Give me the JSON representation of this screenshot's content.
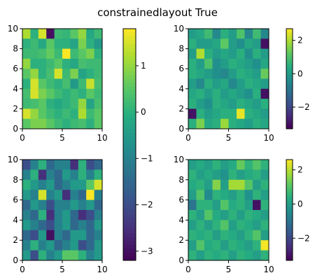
{
  "figure": {
    "title": "constrainedlayout True"
  },
  "chart_data": [
    {
      "type": "heatmap",
      "colormap": "viridis",
      "extent": {
        "x": [
          0,
          10
        ],
        "y": [
          0,
          10
        ]
      },
      "xticks": [
        0,
        5,
        10
      ],
      "yticks": [
        0,
        2,
        4,
        6,
        8,
        10
      ],
      "grid": false,
      "colorbar": {
        "ticks": [
          -3,
          -2,
          -1,
          0,
          1
        ],
        "range": [
          -3.2,
          1.8
        ],
        "orientation": "vertical",
        "placement": "right"
      },
      "values": [
        [
          1.2,
          0.0,
          1.5,
          -3.0,
          0.2,
          0.1,
          0.5,
          1.0,
          -0.2,
          0.2
        ],
        [
          0.0,
          0.2,
          -0.2,
          0.5,
          0.0,
          0.0,
          -0.3,
          0.8,
          0.0,
          -0.5
        ],
        [
          0.2,
          0.2,
          0.3,
          0.6,
          0.2,
          1.8,
          0.2,
          0.5,
          0.8,
          0.0
        ],
        [
          1.0,
          0.0,
          0.0,
          0.2,
          0.5,
          0.0,
          -0.2,
          0.3,
          0.2,
          0.2
        ],
        [
          0.5,
          1.0,
          0.0,
          0.3,
          1.5,
          0.2,
          0.8,
          -0.3,
          0.0,
          0.2
        ],
        [
          0.0,
          1.5,
          0.5,
          0.2,
          0.0,
          0.3,
          -0.5,
          0.2,
          1.4,
          0.3
        ],
        [
          0.3,
          1.5,
          0.8,
          0.5,
          0.2,
          0.0,
          0.2,
          0.0,
          0.5,
          0.2
        ],
        [
          0.2,
          0.3,
          0.5,
          0.0,
          -0.2,
          0.0,
          0.2,
          1.0,
          -0.3,
          0.3
        ],
        [
          1.5,
          1.0,
          0.5,
          0.2,
          0.0,
          0.2,
          0.0,
          1.2,
          0.2,
          0.5
        ],
        [
          0.5,
          0.8,
          0.8,
          0.5,
          0.2,
          0.0,
          0.2,
          0.3,
          0.0,
          0.5
        ]
      ]
    },
    {
      "type": "heatmap",
      "colormap": "viridis",
      "extent": {
        "x": [
          0,
          10
        ],
        "y": [
          0,
          10
        ]
      },
      "xticks": [
        0,
        5,
        10
      ],
      "yticks": [
        0,
        2,
        4,
        6,
        8,
        10
      ],
      "grid": false,
      "colorbar": {
        "ticks": [
          -2,
          0,
          2
        ],
        "range": [
          -3.3,
          2.7
        ],
        "orientation": "vertical",
        "placement": "right"
      },
      "values": [
        [
          0.0,
          0.3,
          0.8,
          -0.5,
          0.5,
          0.0,
          1.0,
          -0.5,
          0.8,
          -0.5
        ],
        [
          0.5,
          0.0,
          0.0,
          0.3,
          1.2,
          0.0,
          -0.3,
          0.3,
          0.0,
          -3.0
        ],
        [
          0.0,
          2.0,
          0.5,
          0.0,
          0.3,
          0.0,
          0.5,
          -0.3,
          0.5,
          0.0
        ],
        [
          0.5,
          0.0,
          1.0,
          -0.3,
          0.0,
          0.5,
          0.3,
          0.0,
          -0.3,
          0.3
        ],
        [
          0.5,
          0.3,
          0.0,
          -0.3,
          -0.5,
          0.0,
          0.5,
          0.3,
          0.0,
          1.3
        ],
        [
          0.0,
          -0.5,
          0.5,
          0.0,
          0.3,
          -0.5,
          0.0,
          0.5,
          0.3,
          0.0
        ],
        [
          0.3,
          0.5,
          0.0,
          0.5,
          0.0,
          0.3,
          0.0,
          -0.3,
          0.5,
          -3.0
        ],
        [
          0.5,
          0.0,
          -0.3,
          0.5,
          0.3,
          0.0,
          0.5,
          0.3,
          0.0,
          0.5
        ],
        [
          -3.0,
          0.5,
          0.0,
          0.3,
          0.5,
          0.5,
          2.5,
          0.5,
          0.3,
          0.0
        ],
        [
          0.5,
          1.5,
          0.3,
          0.5,
          1.8,
          0.5,
          0.3,
          0.0,
          0.5,
          0.3
        ]
      ]
    },
    {
      "type": "heatmap",
      "colormap": "viridis",
      "extent": {
        "x": [
          0,
          10
        ],
        "y": [
          0,
          10
        ]
      },
      "xticks": [
        0,
        5,
        10
      ],
      "yticks": [
        0,
        2,
        4,
        6,
        8,
        10
      ],
      "grid": false,
      "colorbar": null,
      "values": [
        [
          -2.0,
          -1.0,
          0.0,
          -1.5,
          -1.0,
          -1.0,
          -2.5,
          0.0,
          -2.0,
          -1.5
        ],
        [
          -1.0,
          0.0,
          -2.5,
          -1.0,
          -1.5,
          -0.5,
          -1.0,
          0.0,
          -1.0,
          0.0
        ],
        [
          0.0,
          -0.5,
          -1.0,
          -0.5,
          -1.5,
          -1.0,
          -0.5,
          -0.5,
          0.5,
          1.5
        ],
        [
          -0.5,
          -1.0,
          1.5,
          -1.0,
          -0.5,
          -2.5,
          -1.0,
          -1.5,
          2.0,
          -1.0
        ],
        [
          -1.5,
          -0.5,
          -1.0,
          -2.0,
          -1.0,
          -1.0,
          -0.5,
          -1.0,
          -0.5,
          -1.5
        ],
        [
          -1.0,
          -1.5,
          0.0,
          -2.5,
          -1.0,
          -0.5,
          -1.5,
          -2.5,
          -2.0,
          -1.0
        ],
        [
          -0.5,
          -1.0,
          -1.5,
          -2.0,
          -1.0,
          -0.5,
          -1.5,
          -1.0,
          -1.5,
          -0.5
        ],
        [
          -1.5,
          -2.0,
          -0.5,
          -3.0,
          -1.0,
          -1.5,
          -0.5,
          -0.5,
          -1.5,
          -1.0
        ],
        [
          -1.0,
          0.0,
          -1.0,
          -0.5,
          -1.5,
          -1.0,
          -0.5,
          -2.0,
          -1.5,
          -0.5
        ],
        [
          -0.5,
          -2.0,
          0.0,
          -1.0,
          -0.5,
          0.5,
          0.5,
          0.0,
          -1.0,
          -0.5
        ]
      ]
    },
    {
      "type": "heatmap",
      "colormap": "viridis",
      "extent": {
        "x": [
          0,
          10
        ],
        "y": [
          0,
          10
        ]
      },
      "xticks": [
        0,
        5,
        10
      ],
      "yticks": [
        0,
        2,
        4,
        6,
        8,
        10
      ],
      "grid": false,
      "colorbar": {
        "ticks": [
          -2,
          0,
          2
        ],
        "range": [
          -3.3,
          2.6
        ],
        "orientation": "vertical",
        "placement": "right"
      },
      "values": [
        [
          0.0,
          0.3,
          0.0,
          0.5,
          0.0,
          0.3,
          1.2,
          0.5,
          1.0,
          0.5
        ],
        [
          0.5,
          0.0,
          0.3,
          0.0,
          -0.3,
          0.5,
          0.0,
          0.3,
          0.5,
          0.0
        ],
        [
          0.3,
          0.5,
          0.0,
          1.5,
          0.0,
          1.8,
          1.8,
          1.0,
          0.0,
          0.5
        ],
        [
          0.0,
          1.0,
          -0.5,
          0.5,
          0.3,
          0.0,
          0.5,
          -0.3,
          0.5,
          0.0
        ],
        [
          -1.0,
          0.5,
          0.5,
          0.0,
          1.0,
          0.3,
          0.5,
          0.0,
          -3.0,
          0.5
        ],
        [
          0.5,
          0.0,
          1.0,
          0.3,
          0.0,
          0.5,
          0.0,
          0.5,
          0.3,
          0.0
        ],
        [
          0.0,
          0.5,
          0.0,
          0.5,
          1.0,
          0.0,
          0.5,
          0.3,
          0.0,
          0.5
        ],
        [
          0.5,
          0.3,
          0.5,
          0.0,
          0.5,
          0.3,
          0.0,
          0.5,
          1.0,
          0.0
        ],
        [
          0.0,
          1.0,
          0.3,
          0.5,
          0.0,
          0.5,
          0.3,
          0.0,
          0.5,
          2.5
        ],
        [
          0.5,
          0.0,
          0.5,
          0.3,
          0.5,
          0.0,
          0.5,
          0.3,
          0.0,
          0.5
        ]
      ]
    }
  ]
}
